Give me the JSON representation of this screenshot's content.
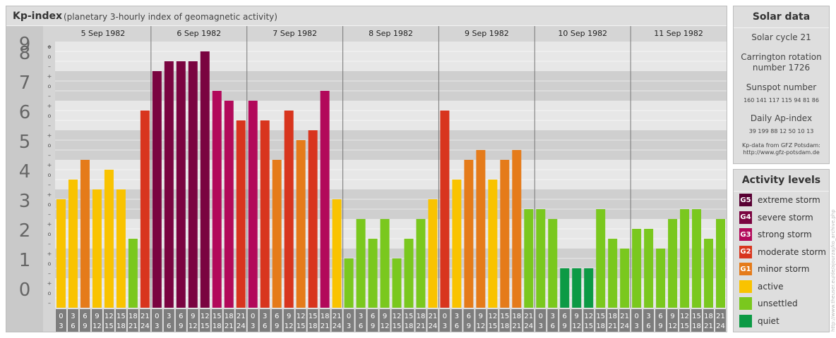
{
  "chart_data": {
    "type": "bar",
    "title": "Kp-index",
    "subtitle": "(planetary 3-hourly index of geomagnetic activity)",
    "ylim": [
      0,
      9
    ],
    "y_ticks": [
      "0",
      "1",
      "2",
      "3",
      "4",
      "5",
      "6",
      "7",
      "8",
      "9"
    ],
    "y_minor_marks": [
      "+",
      "o",
      "–"
    ],
    "days": [
      "5 Sep 1982",
      "6 Sep 1982",
      "7 Sep 1982",
      "8 Sep 1982",
      "9 Sep 1982",
      "10 Sep 1982",
      "11 Sep 1982"
    ],
    "interval_labels": [
      [
        "0",
        "3"
      ],
      [
        "3",
        "6"
      ],
      [
        "6",
        "9"
      ],
      [
        "9",
        "12"
      ],
      [
        "12",
        "15"
      ],
      [
        "15",
        "18"
      ],
      [
        "18",
        "21"
      ],
      [
        "21",
        "24"
      ]
    ],
    "values": [
      3.667,
      4.333,
      5.0,
      4.0,
      4.667,
      4.0,
      2.333,
      6.667,
      8.0,
      8.333,
      8.333,
      8.333,
      8.667,
      7.333,
      7.0,
      6.333,
      7.0,
      6.333,
      5.0,
      6.667,
      5.667,
      6.0,
      7.333,
      3.667,
      1.667,
      3.0,
      2.333,
      3.0,
      1.667,
      2.333,
      3.0,
      3.667,
      6.667,
      4.333,
      5.0,
      5.333,
      4.333,
      5.0,
      5.333,
      3.333,
      3.333,
      3.0,
      1.333,
      1.333,
      1.333,
      3.333,
      2.333,
      2.0,
      2.667,
      2.667,
      2.0,
      3.0,
      3.333,
      3.333,
      2.333,
      3.0
    ],
    "level_colors": {
      "quiet": "#0c9a45",
      "unsettled": "#7ac81e",
      "active": "#f9c300",
      "minor": "#e57b1a",
      "moderate": "#d8351e",
      "strong": "#b2095a",
      "severe": "#7a0440",
      "extreme": "#580033"
    },
    "grid": true
  },
  "solar": {
    "title": "Solar data",
    "cycle": "Solar cycle 21",
    "carrington_line1": "Carrington rotation",
    "carrington_line2": "number 1726",
    "sunspot_label": "Sunspot number",
    "sunspot_values": "160 141 117 115 94 81 86",
    "ap_label": "Daily Ap-index",
    "ap_values": "39 199 88 12 50 10 13",
    "source_line1": "Kp-data from GFZ Potsdam:",
    "source_line2": "http://www.gfz-potsdam.de"
  },
  "activity": {
    "title": "Activity levels",
    "levels": [
      {
        "code": "G5",
        "label": "extreme storm",
        "color": "#580033"
      },
      {
        "code": "G4",
        "label": "severe storm",
        "color": "#7a0440"
      },
      {
        "code": "G3",
        "label": "strong storm",
        "color": "#b2095a"
      },
      {
        "code": "G2",
        "label": "moderate storm",
        "color": "#d8351e"
      },
      {
        "code": "G1",
        "label": "minor storm",
        "color": "#e57b1a"
      },
      {
        "code": "",
        "label": "active",
        "color": "#f9c300"
      },
      {
        "code": "",
        "label": "unsettled",
        "color": "#7ac81e"
      },
      {
        "code": "",
        "label": "quiet",
        "color": "#0c9a45"
      }
    ]
  },
  "watermark": "http://www.theuser.eu/de/ajourzaj/ko_archive.php"
}
